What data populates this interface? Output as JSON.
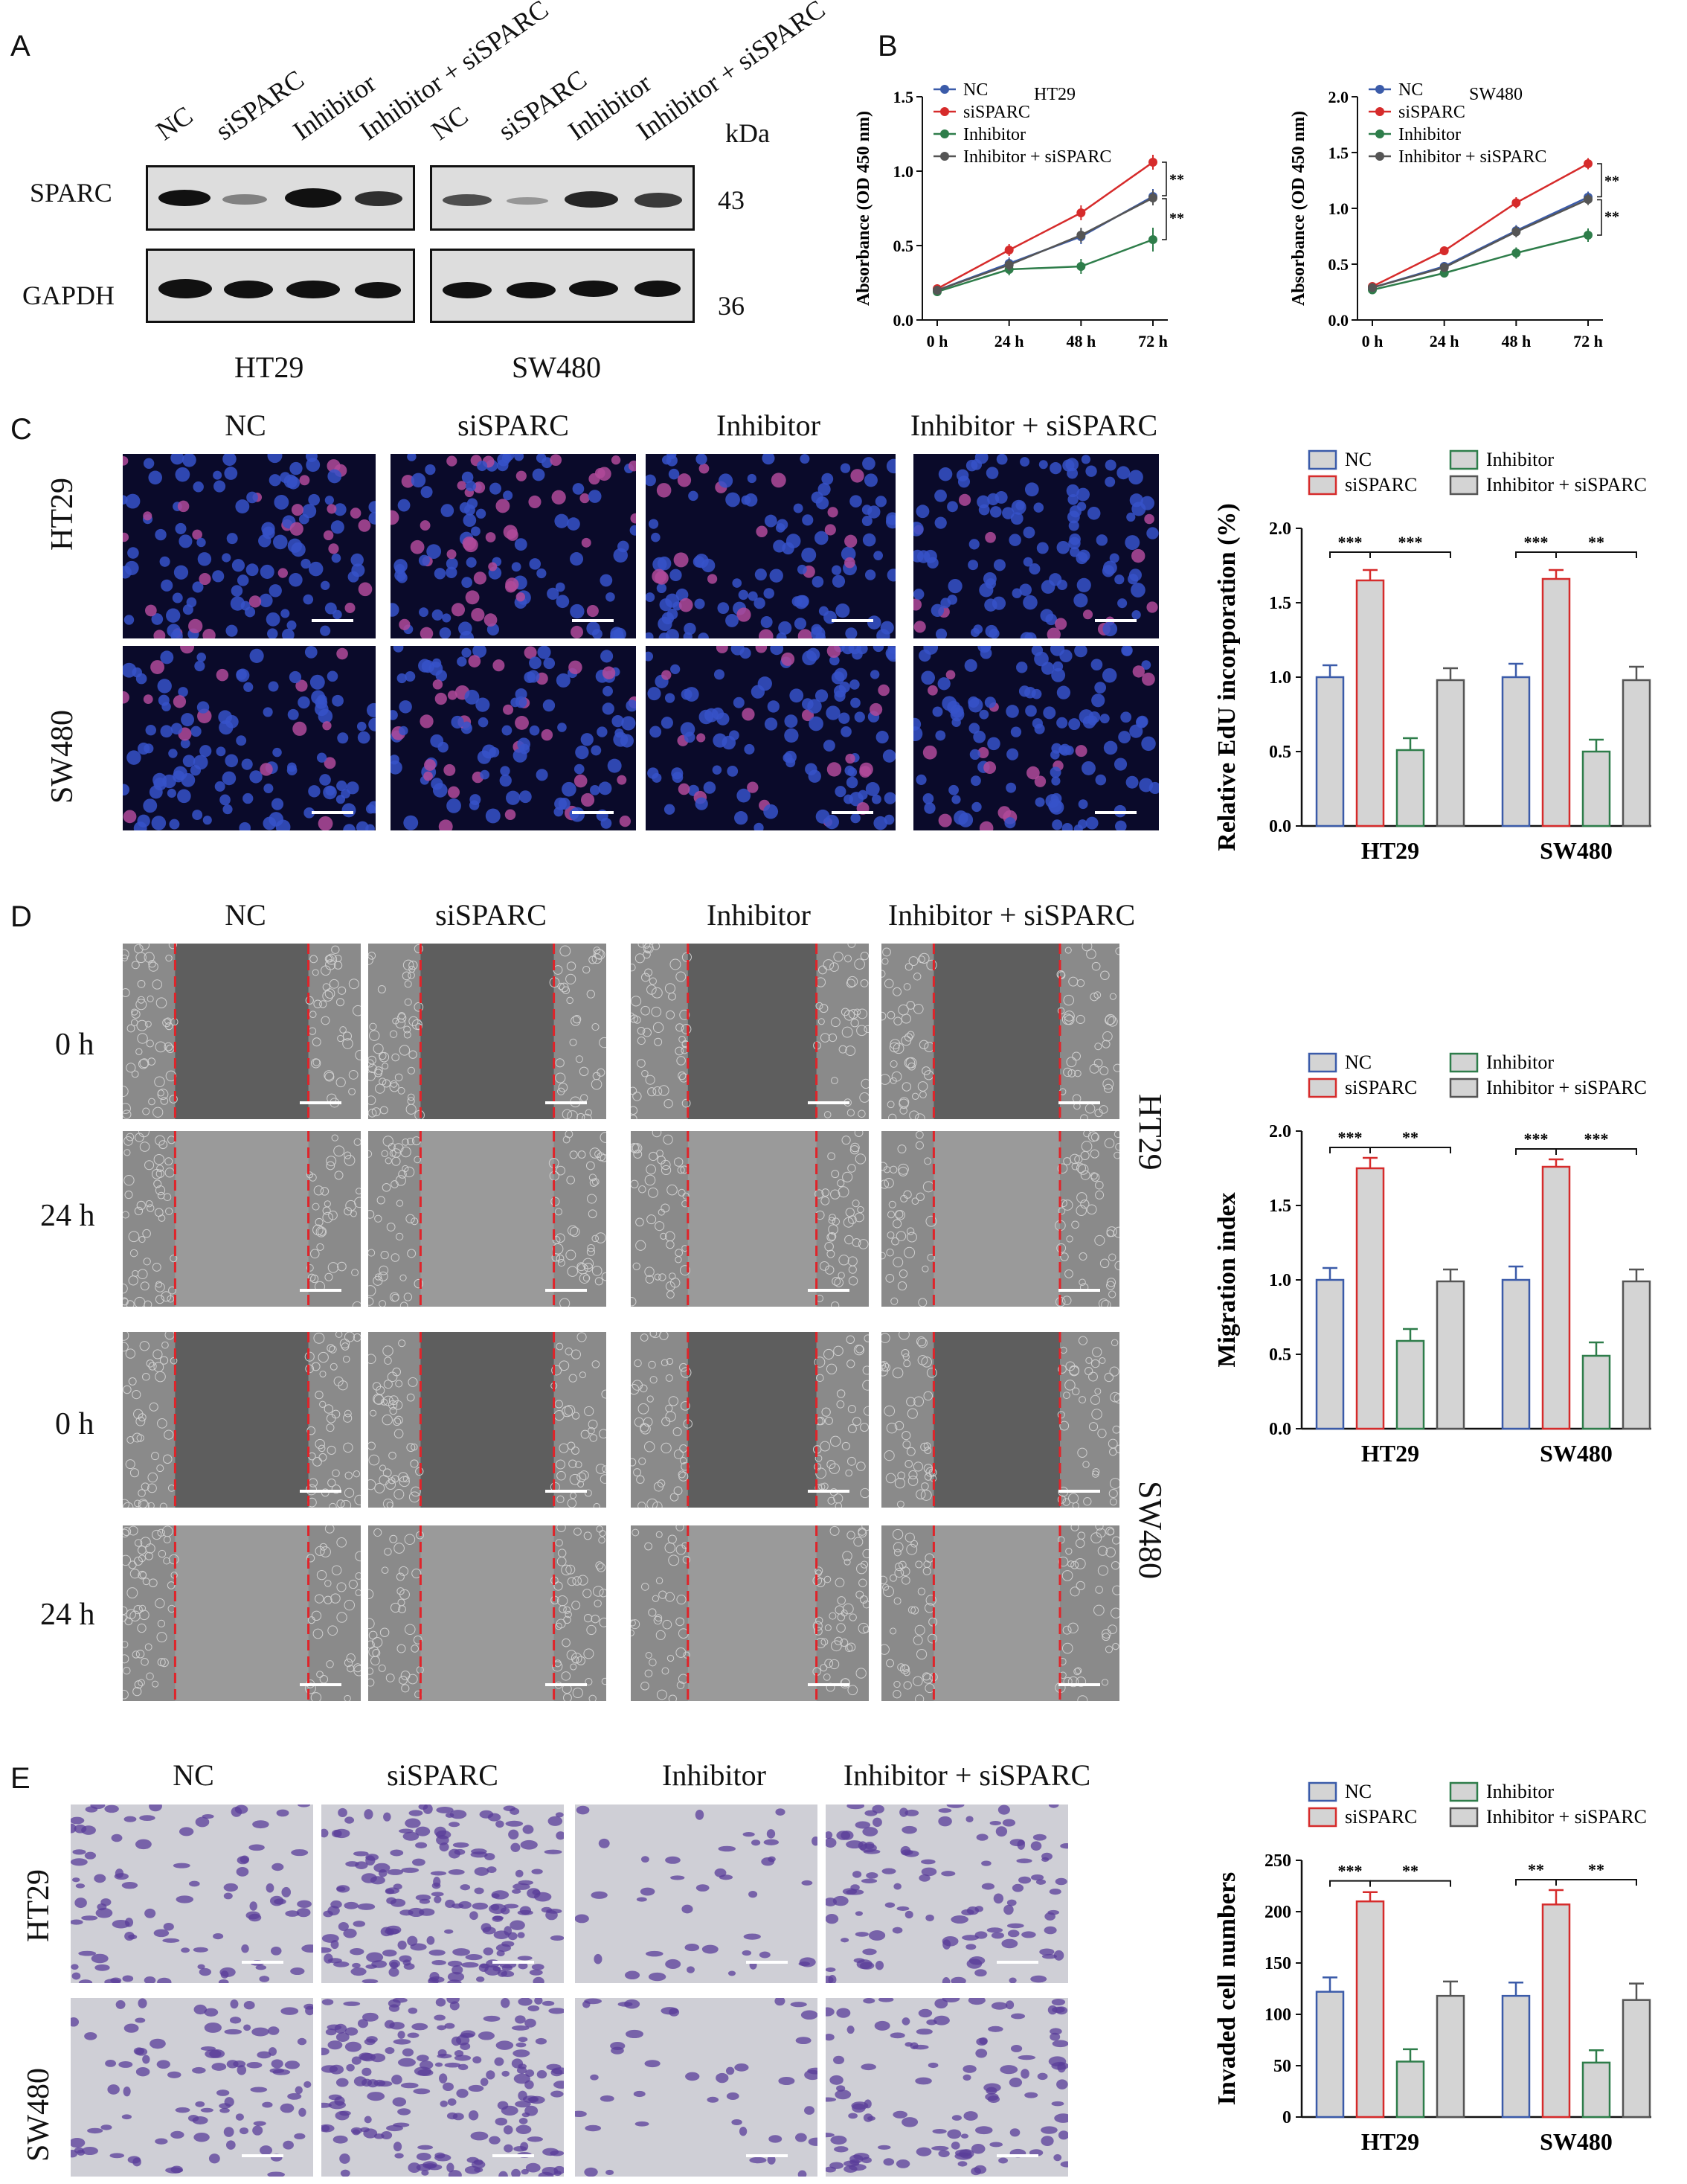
{
  "panel_letters": [
    "A",
    "B",
    "C",
    "D",
    "E"
  ],
  "groups": [
    "NC",
    "siSPARC",
    "Inhibitor",
    "Inhibitor + siSPARC"
  ],
  "panel_a": {
    "lane_labels": [
      "NC",
      "siSPARC",
      "Inhibitor",
      "Inhibitor + siSPARC",
      "NC",
      "siSPARC",
      "Inhibitor",
      "Inhibitor + siSPARC"
    ],
    "kda_label": "kDa",
    "rows": [
      {
        "name": "SPARC",
        "kda": "43"
      },
      {
        "name": "GAPDH",
        "kda": "36"
      }
    ],
    "cell_lines": [
      "HT29",
      "SW480"
    ]
  },
  "panel_c": {
    "col_labels": [
      "NC",
      "siSPARC",
      "Inhibitor",
      "Inhibitor + siSPARC"
    ],
    "row_labels": [
      "HT29",
      "SW480"
    ]
  },
  "panel_d": {
    "col_labels": [
      "NC",
      "siSPARC",
      "Inhibitor",
      "Inhibitor + siSPARC"
    ],
    "time_labels": [
      "0 h",
      "24 h",
      "0 h",
      "24 h"
    ],
    "side_labels": [
      "HT29",
      "SW480"
    ]
  },
  "panel_e": {
    "col_labels": [
      "NC",
      "siSPARC",
      "Inhibitor",
      "Inhibitor + siSPARC"
    ],
    "row_labels": [
      "HT29",
      "SW480"
    ]
  },
  "colors": {
    "NC": "#3b5ba9",
    "siSPARC": "#d62b2b",
    "Inhibitor": "#2e7d4a",
    "Inhibitor + siSPARC": "#555555",
    "bar_fill": "#d4d4d4",
    "edu_bg": "#0a0a2a",
    "wound_bg": "#6a6a6a",
    "transwell_bg": "#cfcfd6"
  },
  "chart_data": [
    {
      "id": "B-HT29",
      "type": "line",
      "title": "HT29",
      "xlabel": "",
      "ylabel": "Absorbance (OD 450 nm)",
      "categories": [
        "0 h",
        "24 h",
        "48 h",
        "72 h"
      ],
      "ylim": [
        0,
        1.5
      ],
      "yticks": [
        "0.0",
        "0.5",
        "1.0",
        "1.5"
      ],
      "series": [
        {
          "name": "NC",
          "values": [
            0.2,
            0.38,
            0.56,
            0.83
          ],
          "err": [
            0.03,
            0.04,
            0.05,
            0.05
          ]
        },
        {
          "name": "siSPARC",
          "values": [
            0.21,
            0.47,
            0.72,
            1.06
          ],
          "err": [
            0.03,
            0.04,
            0.05,
            0.05
          ]
        },
        {
          "name": "Inhibitor",
          "values": [
            0.19,
            0.34,
            0.36,
            0.54
          ],
          "err": [
            0.03,
            0.04,
            0.05,
            0.08
          ]
        },
        {
          "name": "Inhibitor + siSPARC",
          "values": [
            0.2,
            0.37,
            0.57,
            0.82
          ],
          "err": [
            0.03,
            0.04,
            0.05,
            0.05
          ]
        }
      ],
      "annotations": [
        "**",
        "**"
      ]
    },
    {
      "id": "B-SW480",
      "type": "line",
      "title": "SW480",
      "xlabel": "",
      "ylabel": "Absorbance (OD 450 nm)",
      "categories": [
        "0 h",
        "24 h",
        "48 h",
        "72 h"
      ],
      "ylim": [
        0,
        2.0
      ],
      "yticks": [
        "0.0",
        "0.5",
        "1.0",
        "1.5",
        "2.0"
      ],
      "series": [
        {
          "name": "NC",
          "values": [
            0.29,
            0.48,
            0.8,
            1.1
          ],
          "err": [
            0.03,
            0.04,
            0.05,
            0.05
          ]
        },
        {
          "name": "siSPARC",
          "values": [
            0.3,
            0.62,
            1.05,
            1.4
          ],
          "err": [
            0.03,
            0.04,
            0.05,
            0.05
          ]
        },
        {
          "name": "Inhibitor",
          "values": [
            0.27,
            0.42,
            0.6,
            0.76
          ],
          "err": [
            0.03,
            0.04,
            0.05,
            0.06
          ]
        },
        {
          "name": "Inhibitor + siSPARC",
          "values": [
            0.29,
            0.47,
            0.79,
            1.08
          ],
          "err": [
            0.03,
            0.04,
            0.05,
            0.05
          ]
        }
      ],
      "annotations": [
        "**",
        "**"
      ]
    },
    {
      "id": "C-EdU",
      "type": "bar",
      "ylabel": "Relative EdU incorporation (%)",
      "categories": [
        "HT29",
        "SW480"
      ],
      "ylim": [
        0,
        2.0
      ],
      "yticks": [
        "0.0",
        "0.5",
        "1.0",
        "1.5",
        "2.0"
      ],
      "series": [
        {
          "name": "NC",
          "values": [
            1.0,
            1.0
          ],
          "err": [
            0.08,
            0.09
          ]
        },
        {
          "name": "siSPARC",
          "values": [
            1.65,
            1.66
          ],
          "err": [
            0.07,
            0.06
          ]
        },
        {
          "name": "Inhibitor",
          "values": [
            0.51,
            0.5
          ],
          "err": [
            0.08,
            0.08
          ]
        },
        {
          "name": "Inhibitor + siSPARC",
          "values": [
            0.98,
            0.98
          ],
          "err": [
            0.08,
            0.09
          ]
        }
      ],
      "significance": [
        [
          "***",
          "***"
        ],
        [
          "***",
          "**"
        ]
      ]
    },
    {
      "id": "D-Migration",
      "type": "bar",
      "ylabel": "Migration index",
      "categories": [
        "HT29",
        "SW480"
      ],
      "ylim": [
        0,
        2.0
      ],
      "yticks": [
        "0.0",
        "0.5",
        "1.0",
        "1.5",
        "2.0"
      ],
      "series": [
        {
          "name": "NC",
          "values": [
            1.0,
            1.0
          ],
          "err": [
            0.08,
            0.09
          ]
        },
        {
          "name": "siSPARC",
          "values": [
            1.75,
            1.76
          ],
          "err": [
            0.07,
            0.05
          ]
        },
        {
          "name": "Inhibitor",
          "values": [
            0.59,
            0.49
          ],
          "err": [
            0.08,
            0.09
          ]
        },
        {
          "name": "Inhibitor + siSPARC",
          "values": [
            0.99,
            0.99
          ],
          "err": [
            0.08,
            0.08
          ]
        }
      ],
      "significance": [
        [
          "***",
          "**"
        ],
        [
          "***",
          "***"
        ]
      ]
    },
    {
      "id": "E-Invasion",
      "type": "bar",
      "ylabel": "Invaded cell numbers",
      "categories": [
        "HT29",
        "SW480"
      ],
      "ylim": [
        0,
        250
      ],
      "yticks": [
        "0",
        "50",
        "100",
        "150",
        "200",
        "250"
      ],
      "series": [
        {
          "name": "NC",
          "values": [
            122,
            118
          ],
          "err": [
            14,
            13
          ]
        },
        {
          "name": "siSPARC",
          "values": [
            210,
            207
          ],
          "err": [
            9,
            14
          ]
        },
        {
          "name": "Inhibitor",
          "values": [
            54,
            53
          ],
          "err": [
            12,
            12
          ]
        },
        {
          "name": "Inhibitor + siSPARC",
          "values": [
            118,
            114
          ],
          "err": [
            14,
            16
          ]
        }
      ],
      "significance": [
        [
          "***",
          "**"
        ],
        [
          "**",
          "**"
        ]
      ]
    }
  ]
}
